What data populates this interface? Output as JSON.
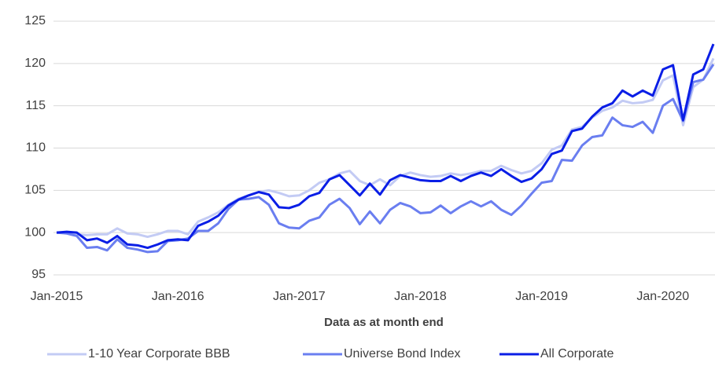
{
  "chart_data": {
    "type": "line",
    "x_label": "Data as at month end",
    "categories": [
      "Jan-2015",
      null,
      null,
      null,
      null,
      null,
      null,
      null,
      null,
      null,
      null,
      null,
      "Jan-2016",
      null,
      null,
      null,
      null,
      null,
      null,
      null,
      null,
      null,
      null,
      null,
      "Jan-2017",
      null,
      null,
      null,
      null,
      null,
      null,
      null,
      null,
      null,
      null,
      null,
      "Jan-2018",
      null,
      null,
      null,
      null,
      null,
      null,
      null,
      null,
      null,
      null,
      null,
      "Jan-2019",
      null,
      null,
      null,
      null,
      null,
      null,
      null,
      null,
      null,
      null,
      null,
      "Jan-2020",
      null,
      null,
      null,
      null,
      null
    ],
    "series": [
      {
        "name": "1-10 Year Corporate BBB",
        "color": "#c3cbf4",
        "values": [
          100,
          100,
          99.8,
          99.7,
          99.8,
          99.8,
          100.5,
          99.9,
          99.8,
          99.5,
          99.8,
          100.2,
          100.2,
          99.8,
          101.3,
          101.8,
          102.4,
          103.3,
          104,
          104.4,
          104.8,
          105,
          104.7,
          104.3,
          104.4,
          105,
          105.9,
          106.3,
          107,
          107.3,
          106.1,
          105.6,
          106.3,
          105.6,
          106.7,
          107.1,
          106.8,
          106.6,
          106.7,
          107,
          106.8,
          107,
          107.3,
          107.3,
          107.9,
          107.4,
          107,
          107.3,
          108.2,
          109.8,
          110.3,
          112.2,
          112.5,
          113.6,
          114.4,
          114.8,
          115.6,
          115.3,
          115.4,
          115.7,
          118,
          118.6,
          112.7,
          117.2,
          118.1,
          120.6
        ]
      },
      {
        "name": "Universe Bond Index",
        "color": "#6a7ef0",
        "values": [
          100,
          99.9,
          99.6,
          98.2,
          98.3,
          97.9,
          99.2,
          98.2,
          98,
          97.7,
          97.8,
          99,
          99.1,
          99.3,
          100.2,
          100.2,
          101.1,
          102.8,
          103.9,
          104,
          104.2,
          103.3,
          101.1,
          100.6,
          100.5,
          101.4,
          101.8,
          103.3,
          104,
          102.9,
          101,
          102.5,
          101.1,
          102.7,
          103.5,
          103.1,
          102.3,
          102.4,
          103.2,
          102.3,
          103.1,
          103.7,
          103.1,
          103.7,
          102.7,
          102.1,
          103.2,
          104.6,
          105.9,
          106.1,
          108.6,
          108.5,
          110.3,
          111.3,
          111.5,
          113.6,
          112.7,
          112.5,
          113.1,
          111.8,
          115,
          115.8,
          113.2,
          117.8,
          118.1,
          119.9
        ]
      },
      {
        "name": "All Corporate",
        "color": "#0a1ee6",
        "values": [
          100,
          100.1,
          100,
          99.1,
          99.3,
          98.8,
          99.6,
          98.6,
          98.5,
          98.2,
          98.6,
          99.1,
          99.2,
          99.1,
          100.8,
          101.3,
          102,
          103.2,
          103.9,
          104.4,
          104.8,
          104.5,
          103,
          102.9,
          103.3,
          104.3,
          104.7,
          106.3,
          106.8,
          105.6,
          104.4,
          105.8,
          104.5,
          106.2,
          106.8,
          106.5,
          106.2,
          106.1,
          106.1,
          106.7,
          106.1,
          106.7,
          107.1,
          106.7,
          107.5,
          106.7,
          106,
          106.4,
          107.5,
          109.3,
          109.7,
          112,
          112.3,
          113.7,
          114.8,
          115.3,
          116.8,
          116.1,
          116.8,
          116.2,
          119.3,
          119.8,
          113.3,
          118.7,
          119.3,
          122.3
        ]
      }
    ],
    "ylim": [
      95,
      125
    ],
    "yticks": [
      95,
      100,
      105,
      110,
      115,
      120,
      125
    ],
    "grid": true,
    "legend": "bottom"
  }
}
